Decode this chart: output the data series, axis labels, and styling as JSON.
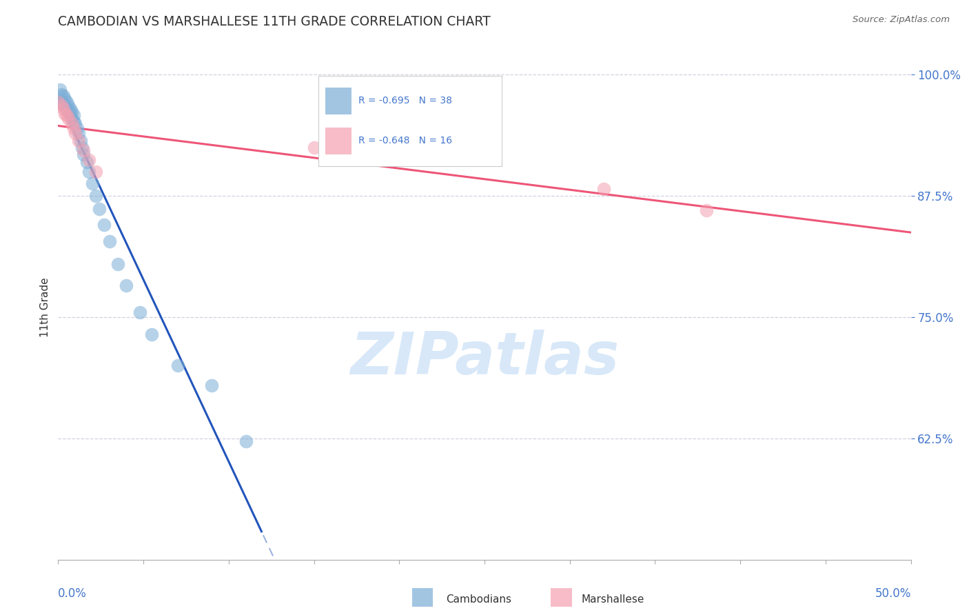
{
  "title": "CAMBODIAN VS MARSHALLESE 11TH GRADE CORRELATION CHART",
  "source": "Source: ZipAtlas.com",
  "ylabel": "11th Grade",
  "R_cambodian": "-0.695",
  "N_cambodian": "38",
  "R_marshallese": "-0.648",
  "N_marshallese": "16",
  "camb_x": [
    0.0,
    0.001,
    0.002,
    0.002,
    0.003,
    0.003,
    0.004,
    0.004,
    0.005,
    0.005,
    0.006,
    0.006,
    0.007,
    0.007,
    0.008,
    0.008,
    0.009,
    0.009,
    0.01,
    0.011,
    0.012,
    0.013,
    0.014,
    0.015,
    0.017,
    0.018,
    0.02,
    0.022,
    0.024,
    0.027,
    0.03,
    0.035,
    0.04,
    0.048,
    0.055,
    0.07,
    0.09,
    0.11
  ],
  "camb_y": [
    0.972,
    0.985,
    0.98,
    0.972,
    0.978,
    0.968,
    0.975,
    0.968,
    0.972,
    0.965,
    0.968,
    0.962,
    0.965,
    0.958,
    0.962,
    0.955,
    0.958,
    0.952,
    0.95,
    0.945,
    0.94,
    0.932,
    0.925,
    0.918,
    0.91,
    0.9,
    0.888,
    0.875,
    0.862,
    0.845,
    0.828,
    0.805,
    0.783,
    0.755,
    0.732,
    0.7,
    0.68,
    0.622
  ],
  "marsh_x": [
    0.0,
    0.002,
    0.003,
    0.004,
    0.005,
    0.006,
    0.008,
    0.009,
    0.01,
    0.012,
    0.015,
    0.018,
    0.022,
    0.15,
    0.32,
    0.38
  ],
  "marsh_y": [
    0.972,
    0.968,
    0.965,
    0.96,
    0.958,
    0.955,
    0.95,
    0.945,
    0.94,
    0.932,
    0.922,
    0.912,
    0.9,
    0.925,
    0.882,
    0.86
  ],
  "xlim": [
    0.0,
    0.5
  ],
  "ylim": [
    0.5,
    1.02
  ],
  "yticks": [
    0.625,
    0.75,
    0.875,
    1.0
  ],
  "ytick_labels": [
    "62.5%",
    "75.0%",
    "87.5%",
    "100.0%"
  ],
  "blue_scatter": "#7BADD6",
  "pink_scatter": "#F4A0B0",
  "blue_line": "#2255BB",
  "pink_line": "#EE5577",
  "grid_color": "#CCCCDD",
  "bg_color": "#FFFFFF",
  "title_color": "#333333",
  "tick_color": "#4477CC",
  "source_color": "#666666",
  "watermark_color": "#D8E8F8",
  "legend_text_color": "#4477CC"
}
